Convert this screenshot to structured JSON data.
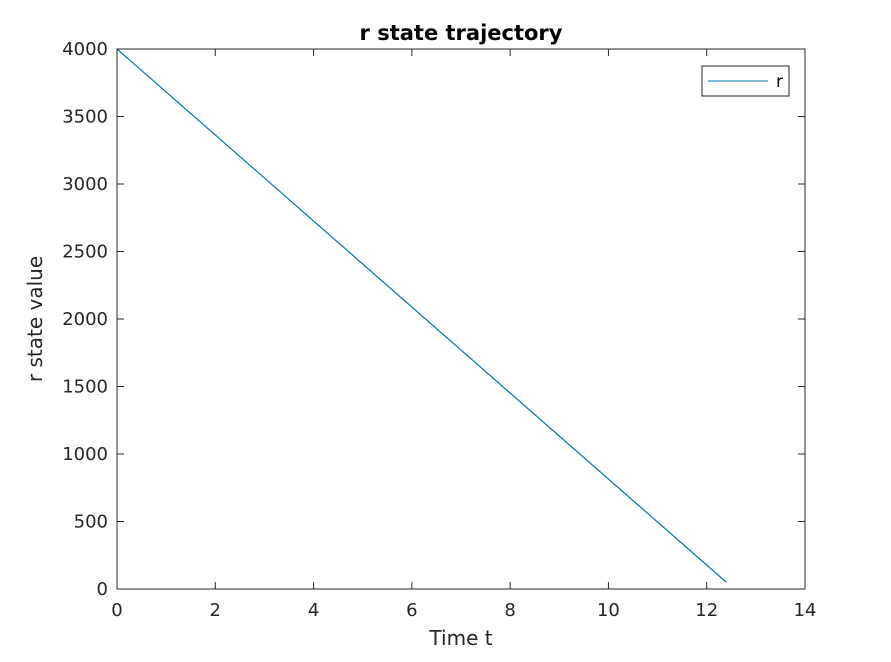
{
  "chart_data": {
    "type": "line",
    "title": "r state trajectory",
    "xlabel": "Time t",
    "ylabel": "r state value",
    "xlim": [
      0,
      14
    ],
    "ylim": [
      0,
      4000
    ],
    "xticks": [
      0,
      2,
      4,
      6,
      8,
      10,
      12,
      14
    ],
    "yticks": [
      0,
      500,
      1000,
      1500,
      2000,
      2500,
      3000,
      3500,
      4000
    ],
    "grid": false,
    "legend_position": "top-right",
    "series": [
      {
        "name": "r",
        "color": "#0072BD",
        "x": [
          0,
          12.4
        ],
        "y": [
          4000,
          50
        ]
      }
    ]
  }
}
